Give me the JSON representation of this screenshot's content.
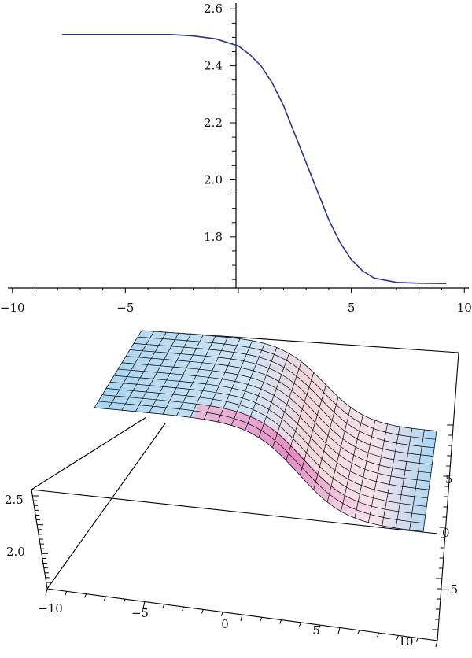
{
  "chart_data": [
    {
      "type": "line",
      "title": "",
      "xlabel": "",
      "ylabel": "",
      "xlim": [
        -10.2,
        10.2
      ],
      "ylim": [
        1.62,
        2.62
      ],
      "x_ticks": [
        -10,
        -5,
        5,
        10
      ],
      "x_tick_labels": [
        "−10",
        "−5",
        "5",
        "10"
      ],
      "y_ticks": [
        1.8,
        2.0,
        2.2,
        2.4,
        2.6
      ],
      "y_tick_labels": [
        "1.8",
        "2.0",
        "2.2",
        "2.4",
        "2.6"
      ],
      "series": [
        {
          "color": "#2f2f8f",
          "x": [
            -7.8,
            -6,
            -4,
            -3,
            -2,
            -1,
            0,
            0.5,
            1,
            1.5,
            2,
            2.5,
            3,
            3.5,
            4,
            4.5,
            5,
            5.5,
            6,
            7,
            8,
            9.2
          ],
          "y": [
            2.51,
            2.51,
            2.51,
            2.51,
            2.505,
            2.495,
            2.47,
            2.44,
            2.4,
            2.34,
            2.26,
            2.16,
            2.06,
            1.96,
            1.86,
            1.78,
            1.72,
            1.68,
            1.655,
            1.64,
            1.637,
            1.636
          ]
        }
      ]
    },
    {
      "type": "surface",
      "title": "",
      "x_tick_labels": [
        "−10",
        "−5",
        "0",
        "5",
        "10"
      ],
      "y_tick_labels": [
        "5",
        "0",
        "−5"
      ],
      "z_tick_labels": [
        "2.5",
        "2.0"
      ],
      "z_range": [
        1.63,
        2.51
      ],
      "colors": {
        "high": "#a9d4f0",
        "low": "#e8a0cc",
        "edge": "#9ed2f0"
      }
    }
  ]
}
